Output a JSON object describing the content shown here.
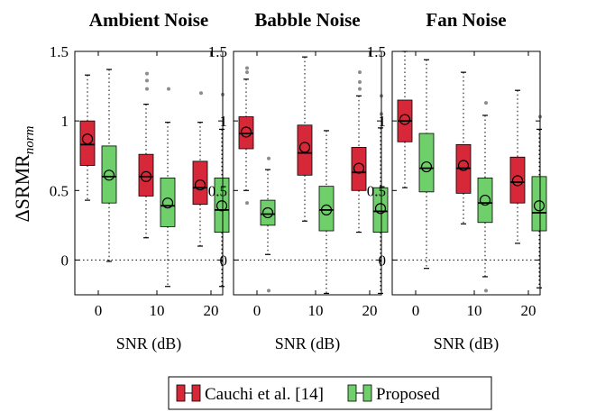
{
  "chart_data": [
    {
      "type": "box",
      "title": "Ambient Noise",
      "xlabel": "SNR (dB)",
      "ylabel": "ΔSRMR",
      "ylabel_sub": "norm",
      "categories": [
        "0",
        "10",
        "20"
      ],
      "ylim": [
        -0.25,
        1.5
      ],
      "yticks": [
        "0",
        "0.5",
        "1",
        "1.5"
      ],
      "series": [
        {
          "name": "Cauchi et al. [14]",
          "color": "#d62839",
          "boxes": [
            {
              "whisker_low": 0.43,
              "q1": 0.68,
              "median": 0.83,
              "mean": 0.87,
              "q3": 1.0,
              "whisker_high": 1.33,
              "outliers": []
            },
            {
              "whisker_low": 0.16,
              "q1": 0.46,
              "median": 0.6,
              "mean": 0.6,
              "q3": 0.76,
              "whisker_high": 1.12,
              "outliers": [
                1.23,
                1.29,
                1.34
              ]
            },
            {
              "whisker_low": 0.1,
              "q1": 0.4,
              "median": 0.52,
              "mean": 0.54,
              "q3": 0.71,
              "whisker_high": 0.99,
              "outliers": [
                1.2
              ]
            }
          ]
        },
        {
          "name": "Proposed",
          "color": "#6fcf6a",
          "boxes": [
            {
              "whisker_low": -0.01,
              "q1": 0.41,
              "median": 0.6,
              "mean": 0.61,
              "q3": 0.82,
              "whisker_high": 1.37,
              "outliers": []
            },
            {
              "whisker_low": -0.19,
              "q1": 0.24,
              "median": 0.39,
              "mean": 0.41,
              "q3": 0.59,
              "whisker_high": 0.99,
              "outliers": [
                1.23
              ]
            },
            {
              "whisker_low": -0.19,
              "q1": 0.2,
              "median": 0.36,
              "mean": 0.39,
              "q3": 0.59,
              "whisker_high": 0.94,
              "outliers": [
                1.19
              ]
            }
          ]
        }
      ]
    },
    {
      "type": "box",
      "title": "Babble Noise",
      "xlabel": "SNR (dB)",
      "categories": [
        "0",
        "10",
        "20"
      ],
      "ylim": [
        -0.25,
        1.5
      ],
      "yticks": [
        "0",
        "0.5",
        "1",
        "1.5"
      ],
      "series": [
        {
          "name": "Cauchi et al. [14]",
          "color": "#d62839",
          "boxes": [
            {
              "whisker_low": 0.5,
              "q1": 0.8,
              "median": 0.91,
              "mean": 0.92,
              "q3": 1.03,
              "whisker_high": 1.3,
              "outliers": [
                0.41,
                1.35,
                1.38
              ]
            },
            {
              "whisker_low": 0.28,
              "q1": 0.61,
              "median": 0.77,
              "mean": 0.81,
              "q3": 0.97,
              "whisker_high": 1.46,
              "outliers": []
            },
            {
              "whisker_low": 0.2,
              "q1": 0.5,
              "median": 0.63,
              "mean": 0.66,
              "q3": 0.81,
              "whisker_high": 1.18,
              "outliers": [
                1.23,
                1.28,
                1.35
              ]
            }
          ]
        },
        {
          "name": "Proposed",
          "color": "#6fcf6a",
          "boxes": [
            {
              "whisker_low": 0.04,
              "q1": 0.25,
              "median": 0.33,
              "mean": 0.34,
              "q3": 0.43,
              "whisker_high": 0.65,
              "outliers": [
                -0.22,
                0.73
              ]
            },
            {
              "whisker_low": -0.24,
              "q1": 0.21,
              "median": 0.36,
              "mean": 0.36,
              "q3": 0.53,
              "whisker_high": 0.93,
              "outliers": []
            },
            {
              "whisker_low": -0.24,
              "q1": 0.2,
              "median": 0.35,
              "mean": 0.37,
              "q3": 0.52,
              "whisker_high": 0.95,
              "outliers": [
                1.05,
                1.18
              ]
            }
          ]
        }
      ]
    },
    {
      "type": "box",
      "title": "Fan Noise",
      "xlabel": "SNR (dB)",
      "categories": [
        "0",
        "10",
        "20"
      ],
      "ylim": [
        -0.25,
        1.5
      ],
      "yticks": [
        "0",
        "0.5",
        "1",
        "1.5"
      ],
      "series": [
        {
          "name": "Cauchi et al. [14]",
          "color": "#d62839",
          "boxes": [
            {
              "whisker_low": 0.52,
              "q1": 0.85,
              "median": 1.0,
              "mean": 1.01,
              "q3": 1.15,
              "whisker_high": 1.5,
              "outliers": []
            },
            {
              "whisker_low": 0.26,
              "q1": 0.48,
              "median": 0.66,
              "mean": 0.68,
              "q3": 0.83,
              "whisker_high": 1.35,
              "outliers": []
            },
            {
              "whisker_low": 0.12,
              "q1": 0.41,
              "median": 0.56,
              "mean": 0.57,
              "q3": 0.74,
              "whisker_high": 1.22,
              "outliers": []
            }
          ]
        },
        {
          "name": "Proposed",
          "color": "#6fcf6a",
          "boxes": [
            {
              "whisker_low": -0.06,
              "q1": 0.49,
              "median": 0.66,
              "mean": 0.67,
              "q3": 0.91,
              "whisker_high": 1.44,
              "outliers": []
            },
            {
              "whisker_low": -0.12,
              "q1": 0.27,
              "median": 0.41,
              "mean": 0.43,
              "q3": 0.59,
              "whisker_high": 1.04,
              "outliers": [
                -0.22,
                1.13
              ]
            },
            {
              "whisker_low": -0.2,
              "q1": 0.21,
              "median": 0.34,
              "mean": 0.39,
              "q3": 0.6,
              "whisker_high": 0.94,
              "outliers": [
                1.03
              ]
            }
          ]
        }
      ]
    }
  ],
  "legend": {
    "placement": "bottom-center",
    "entries": [
      {
        "label": "Cauchi et al. [14]",
        "color": "#d62839"
      },
      {
        "label": "Proposed",
        "color": "#6fcf6a"
      }
    ]
  }
}
